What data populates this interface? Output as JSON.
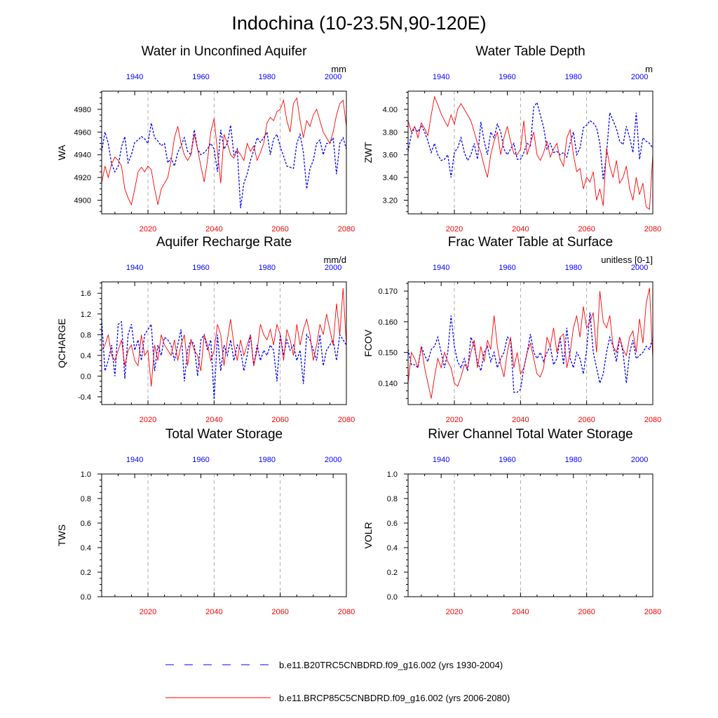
{
  "title": "Indochina (10-23.5N,90-120E)",
  "colors": {
    "historical": "#0000ff",
    "future": "#ff0000",
    "frame": "#000000",
    "gridline": "#999999"
  },
  "legend": {
    "items": [
      {
        "label": "b.e11.B20TRC5CNBDRD.f09_g16.002 (yrs 1930-2004)",
        "style": "dashed",
        "color": "#0000ff"
      },
      {
        "label": "b.e11.BRCP85C5CNBDRD.f09_g16.002 (yrs 2006-2080)",
        "style": "solid",
        "color": "#ff0000"
      }
    ]
  },
  "chart_data": [
    {
      "type": "line",
      "title": "Water in Unconfined Aquifer",
      "ylabel": "WA",
      "units": "mm",
      "ylim": [
        4888,
        4996
      ],
      "yticks": [
        4900,
        4920,
        4940,
        4960,
        4980
      ],
      "ytick_labels": [
        "4900",
        "4920",
        "4940",
        "4960",
        "4980"
      ],
      "bottom_xaxis": {
        "xlim": [
          2006,
          2080
        ],
        "ticks": [
          2020,
          2040,
          2060,
          2080
        ]
      },
      "top_xaxis": {
        "xlim": [
          1930,
          2004
        ],
        "ticks": [
          1940,
          1960,
          1980,
          2000
        ]
      },
      "grid": "vertical dashed at major x ticks",
      "series": [
        {
          "name": "b.e11.B20TRC5CNBDRD.f09_g16.002 (yrs 1930-2004)",
          "axis": "top",
          "style": "dashed",
          "color": "#0000ff",
          "x_start": 1930,
          "values": [
            4943,
            4960,
            4950,
            4932,
            4925,
            4930,
            4947,
            4956,
            4933,
            4940,
            4951,
            4953,
            4956,
            4954,
            4950,
            4968,
            4955,
            4952,
            4948,
            4950,
            4933,
            4937,
            4930,
            4942,
            4948,
            4955,
            4943,
            4940,
            4962,
            4945,
            4940,
            4942,
            4945,
            4950,
            4945,
            4925,
            4962,
            4945,
            4950,
            4966,
            4940,
            4945,
            4893,
            4915,
            4923,
            4935,
            4944,
            4955,
            4951,
            4955,
            4960,
            4940,
            4954,
            4958,
            4947,
            4939,
            4930,
            4929,
            4928,
            4950,
            4958,
            4942,
            4910,
            4928,
            4935,
            4950,
            4953,
            4940,
            4950,
            4950,
            4955,
            4923,
            4950,
            4955,
            4945
          ]
        },
        {
          "name": "b.e11.BRCP85C5CNBDRD.f09_g16.002 (yrs 2006-2080)",
          "axis": "bottom",
          "style": "solid",
          "color": "#ff0000",
          "x_start": 2006,
          "values": [
            4915,
            4930,
            4920,
            4932,
            4938,
            4935,
            4930,
            4910,
            4902,
            4896,
            4910,
            4925,
            4929,
            4925,
            4930,
            4927,
            4910,
            4896,
            4910,
            4915,
            4920,
            4935,
            4955,
            4965,
            4950,
            4940,
            4935,
            4940,
            4958,
            4945,
            4930,
            4916,
            4935,
            4960,
            4972,
            4943,
            4915,
            4958,
            4950,
            4940,
            4937,
            4944,
            4940,
            4935,
            4950,
            4943,
            4948,
            4935,
            4942,
            4950,
            4968,
            4973,
            4970,
            4978,
            4980,
            4988,
            4970,
            4960,
            4985,
            4990,
            4970,
            4955,
            4970,
            4965,
            4975,
            4980,
            4970,
            4960,
            4955,
            4950,
            4960,
            4975,
            4985,
            4988,
            4965
          ]
        }
      ]
    },
    {
      "type": "line",
      "title": "Water Table Depth",
      "ylabel": "ZWT",
      "units": "m",
      "ylim": [
        3.08,
        4.16
      ],
      "yticks": [
        3.2,
        3.4,
        3.6,
        3.8,
        4.0
      ],
      "ytick_labels": [
        "3.20",
        "3.40",
        "3.60",
        "3.80",
        "4.00"
      ],
      "bottom_xaxis": {
        "xlim": [
          2006,
          2080
        ],
        "ticks": [
          2020,
          2040,
          2060,
          2080
        ]
      },
      "top_xaxis": {
        "xlim": [
          1930,
          2004
        ],
        "ticks": [
          1940,
          1960,
          1980,
          2000
        ]
      },
      "grid": "vertical dashed at major x ticks",
      "series": [
        {
          "name": "b.e11.B20TRC5CNBDRD.f09_g16.002 (yrs 1930-2004)",
          "axis": "top",
          "style": "dashed",
          "color": "#0000ff",
          "x_start": 1930,
          "values": [
            3.63,
            3.78,
            3.84,
            3.8,
            3.86,
            3.8,
            3.72,
            3.62,
            3.7,
            3.6,
            3.55,
            3.56,
            3.6,
            3.4,
            3.62,
            3.66,
            3.75,
            3.62,
            3.55,
            3.6,
            3.7,
            3.56,
            3.89,
            3.72,
            3.6,
            3.8,
            3.75,
            3.87,
            3.8,
            3.65,
            3.6,
            3.65,
            3.7,
            3.56,
            3.56,
            3.62,
            3.7,
            3.68,
            4.02,
            4.06,
            3.95,
            3.84,
            3.65,
            3.7,
            3.62,
            3.63,
            3.6,
            3.62,
            3.58,
            3.7,
            3.8,
            3.6,
            3.66,
            3.84,
            3.86,
            3.9,
            3.88,
            3.84,
            3.7,
            3.38,
            3.6,
            3.97,
            3.9,
            3.83,
            3.72,
            3.69,
            3.85,
            3.75,
            3.62,
            3.97,
            3.56,
            3.75,
            3.72,
            3.7,
            3.66
          ]
        },
        {
          "name": "b.e11.BRCP85C5CNBDRD.f09_g16.002 (yrs 2006-2080)",
          "axis": "bottom",
          "style": "solid",
          "color": "#ff0000",
          "x_start": 2006,
          "values": [
            3.9,
            3.8,
            3.85,
            3.75,
            3.88,
            3.83,
            3.77,
            3.95,
            4.11,
            4.04,
            3.96,
            3.9,
            3.85,
            3.95,
            3.87,
            4.0,
            4.05,
            4.0,
            3.95,
            3.9,
            3.8,
            3.7,
            3.62,
            3.5,
            3.4,
            3.6,
            3.72,
            3.8,
            3.6,
            3.75,
            3.85,
            3.72,
            3.61,
            3.6,
            3.65,
            3.9,
            3.6,
            3.7,
            3.8,
            3.6,
            3.55,
            3.62,
            3.72,
            3.58,
            3.65,
            3.7,
            3.56,
            3.5,
            3.75,
            3.82,
            3.6,
            3.45,
            3.48,
            3.3,
            3.4,
            3.36,
            3.45,
            3.2,
            3.3,
            3.15,
            3.66,
            3.5,
            3.4,
            3.55,
            3.35,
            3.4,
            3.5,
            3.3,
            3.2,
            3.4,
            3.25,
            3.35,
            3.14,
            3.12,
            3.6
          ]
        }
      ]
    },
    {
      "type": "line",
      "title": "Aquifer Recharge Rate",
      "ylabel": "QCHARGE",
      "units": "mm/d",
      "ylim": [
        -0.55,
        1.82
      ],
      "yticks": [
        -0.4,
        0.0,
        0.4,
        0.8,
        1.2,
        1.6
      ],
      "ytick_labels": [
        "-0.4",
        "0.0",
        "0.4",
        "0.8",
        "1.2",
        "1.6"
      ],
      "bottom_xaxis": {
        "xlim": [
          2006,
          2080
        ],
        "ticks": [
          2020,
          2040,
          2060,
          2080
        ]
      },
      "top_xaxis": {
        "xlim": [
          1930,
          2004
        ],
        "ticks": [
          1940,
          1960,
          1980,
          2000
        ]
      },
      "grid": "vertical dashed at major x ticks",
      "series": [
        {
          "name": "b.e11.B20TRC5CNBDRD.f09_g16.002 (yrs 1930-2004)",
          "axis": "top",
          "style": "dashed",
          "color": "#0000ff",
          "x_start": 1930,
          "values": [
            1.1,
            0.1,
            0.3,
            0.6,
            0.0,
            1.0,
            1.05,
            -0.05,
            0.8,
            1.0,
            0.5,
            0.7,
            0.3,
            0.8,
            0.9,
            1.0,
            0.1,
            0.6,
            0.4,
            0.75,
            0.7,
            0.6,
            0.3,
            0.6,
            0.9,
            -0.1,
            0.5,
            0.7,
            0.6,
            0.0,
            0.7,
            0.8,
            0.5,
            0.7,
            -0.45,
            0.8,
            0.1,
            0.6,
            0.4,
            0.7,
            0.3,
            0.6,
            0.5,
            0.1,
            0.4,
            0.8,
            0.2,
            0.6,
            0.3,
            0.5,
            0.4,
            0.6,
            0.5,
            -0.1,
            0.8,
            0.4,
            0.7,
            0.5,
            0.6,
            0.3,
            0.5,
            -0.15,
            0.8,
            0.7,
            0.5,
            0.3,
            0.8,
            0.2,
            0.5,
            0.6,
            0.7,
            0.3,
            0.8,
            0.7,
            0.6
          ]
        },
        {
          "name": "b.e11.BRCP85C5CNBDRD.f09_g16.002 (yrs 2006-2080)",
          "axis": "bottom",
          "style": "solid",
          "color": "#ff0000",
          "x_start": 2006,
          "values": [
            0.5,
            0.6,
            0.8,
            0.4,
            0.3,
            0.5,
            0.7,
            0.2,
            0.5,
            0.6,
            0.3,
            0.2,
            0.8,
            0.4,
            0.5,
            -0.2,
            0.6,
            0.3,
            0.8,
            0.6,
            0.5,
            0.4,
            0.7,
            0.3,
            0.6,
            0.8,
            0.2,
            0.7,
            0.5,
            0.4,
            0.1,
            0.8,
            0.6,
            0.3,
            0.5,
            1.0,
            0.8,
            0.2,
            0.7,
            1.1,
            0.6,
            0.3,
            0.7,
            0.4,
            0.6,
            0.8,
            0.2,
            0.5,
            1.0,
            0.8,
            0.7,
            0.9,
            0.6,
            1.0,
            0.8,
            0.3,
            0.9,
            0.7,
            0.4,
            1.0,
            0.6,
            0.9,
            1.1,
            0.8,
            0.3,
            0.6,
            1.0,
            0.8,
            1.2,
            0.9,
            0.6,
            1.4,
            0.8,
            1.7,
            0.6
          ]
        }
      ]
    },
    {
      "type": "line",
      "title": "Frac Water Table at Surface",
      "ylabel": "FCOV",
      "units": "unitless [0-1]",
      "ylim": [
        0.133,
        0.173
      ],
      "yticks": [
        0.14,
        0.15,
        0.16,
        0.17
      ],
      "ytick_labels": [
        "0.140",
        "0.150",
        "0.160",
        "0.170"
      ],
      "bottom_xaxis": {
        "xlim": [
          2006,
          2080
        ],
        "ticks": [
          2020,
          2040,
          2060,
          2080
        ]
      },
      "top_xaxis": {
        "xlim": [
          1930,
          2004
        ],
        "ticks": [
          1940,
          1960,
          1980,
          2000
        ]
      },
      "grid": "vertical dashed at major x ticks",
      "series": [
        {
          "name": "b.e11.B20TRC5CNBDRD.f09_g16.002 (yrs 1930-2004)",
          "axis": "top",
          "style": "dashed",
          "color": "#0000ff",
          "x_start": 1930,
          "values": [
            0.151,
            0.146,
            0.146,
            0.145,
            0.152,
            0.149,
            0.147,
            0.151,
            0.152,
            0.155,
            0.15,
            0.145,
            0.15,
            0.162,
            0.152,
            0.147,
            0.145,
            0.148,
            0.144,
            0.155,
            0.152,
            0.147,
            0.144,
            0.15,
            0.152,
            0.147,
            0.15,
            0.145,
            0.148,
            0.15,
            0.155,
            0.154,
            0.137,
            0.137,
            0.138,
            0.145,
            0.15,
            0.156,
            0.15,
            0.148,
            0.15,
            0.147,
            0.15,
            0.152,
            0.146,
            0.148,
            0.155,
            0.146,
            0.158,
            0.148,
            0.145,
            0.15,
            0.148,
            0.143,
            0.151,
            0.163,
            0.15,
            0.145,
            0.14,
            0.143,
            0.15,
            0.155,
            0.152,
            0.147,
            0.155,
            0.15,
            0.14,
            0.15,
            0.154,
            0.148,
            0.149,
            0.15,
            0.152,
            0.151,
            0.155
          ]
        },
        {
          "name": "b.e11.BRCP85C5CNBDRD.f09_g16.002 (yrs 2006-2080)",
          "axis": "bottom",
          "style": "solid",
          "color": "#ff0000",
          "x_start": 2006,
          "values": [
            0.14,
            0.15,
            0.148,
            0.145,
            0.152,
            0.145,
            0.14,
            0.135,
            0.142,
            0.148,
            0.145,
            0.15,
            0.147,
            0.145,
            0.14,
            0.139,
            0.142,
            0.146,
            0.145,
            0.15,
            0.154,
            0.145,
            0.152,
            0.147,
            0.154,
            0.151,
            0.162,
            0.152,
            0.146,
            0.142,
            0.15,
            0.155,
            0.145,
            0.15,
            0.143,
            0.145,
            0.15,
            0.153,
            0.148,
            0.143,
            0.142,
            0.145,
            0.155,
            0.152,
            0.158,
            0.15,
            0.155,
            0.156,
            0.145,
            0.15,
            0.158,
            0.162,
            0.155,
            0.165,
            0.158,
            0.16,
            0.163,
            0.15,
            0.17,
            0.16,
            0.158,
            0.162,
            0.152,
            0.15,
            0.155,
            0.151,
            0.149,
            0.155,
            0.157,
            0.15,
            0.161,
            0.153,
            0.166,
            0.171,
            0.148
          ]
        }
      ]
    },
    {
      "type": "line",
      "title": "Total Water Storage",
      "ylabel": "TWS",
      "units": "",
      "ylim": [
        0,
        1
      ],
      "yticks": [
        0.0,
        0.2,
        0.4,
        0.6,
        0.8,
        1.0
      ],
      "ytick_labels": [
        "0.0",
        "0.2",
        "0.4",
        "0.6",
        "0.8",
        "1.0"
      ],
      "bottom_xaxis": {
        "xlim": [
          2006,
          2080
        ],
        "ticks": [
          2020,
          2040,
          2060,
          2080
        ]
      },
      "top_xaxis": {
        "xlim": [
          1930,
          2004
        ],
        "ticks": [
          1940,
          1960,
          1980,
          2000
        ]
      },
      "grid": "vertical dashed at major x ticks",
      "series": []
    },
    {
      "type": "line",
      "title": "River Channel Total Water Storage",
      "ylabel": "VOLR",
      "units": "",
      "ylim": [
        0,
        1
      ],
      "yticks": [
        0.0,
        0.2,
        0.4,
        0.6,
        0.8,
        1.0
      ],
      "ytick_labels": [
        "0.0",
        "0.2",
        "0.4",
        "0.6",
        "0.8",
        "1.0"
      ],
      "bottom_xaxis": {
        "xlim": [
          2006,
          2080
        ],
        "ticks": [
          2020,
          2040,
          2060,
          2080
        ]
      },
      "top_xaxis": {
        "xlim": [
          1930,
          2004
        ],
        "ticks": [
          1940,
          1960,
          1980,
          2000
        ]
      },
      "grid": "vertical dashed at major x ticks",
      "series": []
    }
  ]
}
